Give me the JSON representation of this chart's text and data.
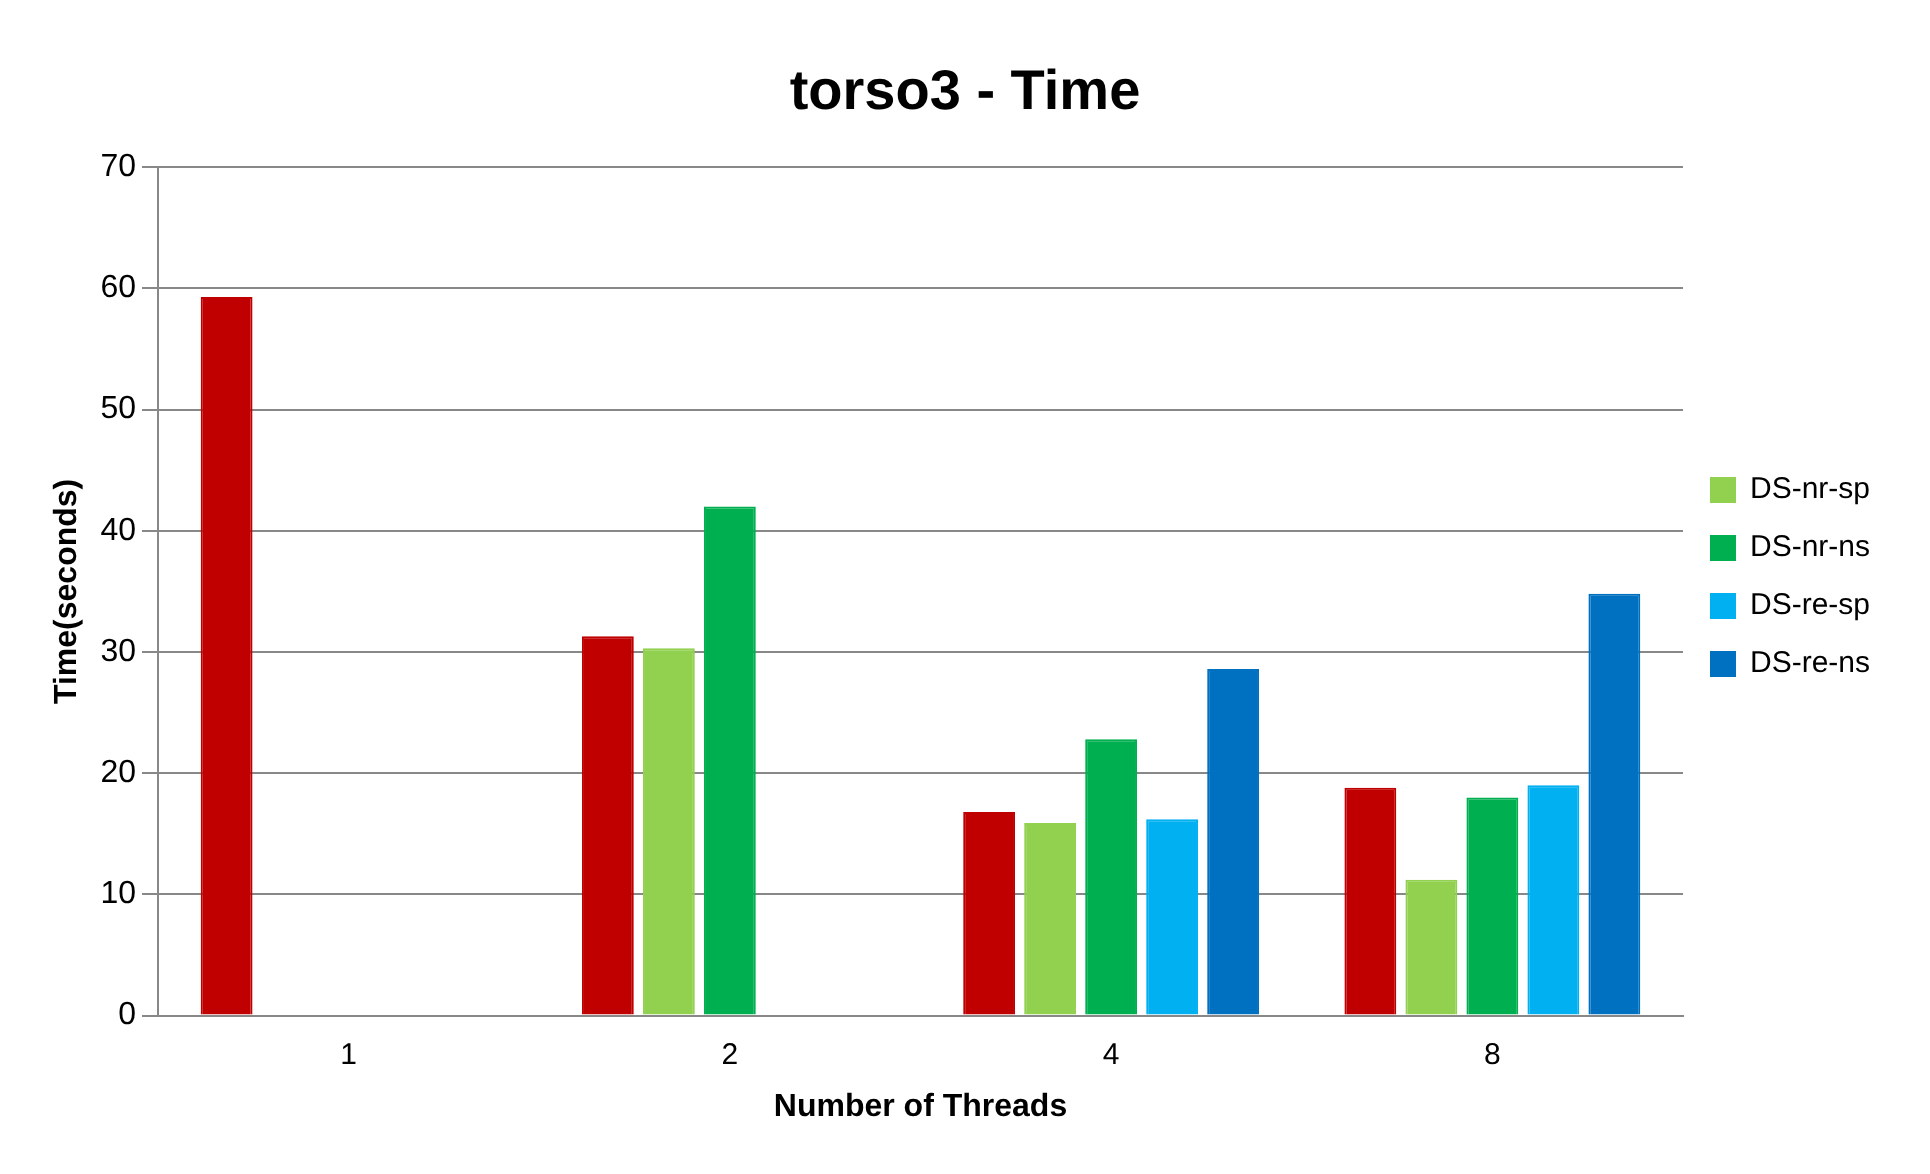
{
  "chart_data": {
    "type": "bar",
    "title": "torso3 - Time",
    "xlabel": "Number of Threads",
    "ylabel": "Time(seconds)",
    "categories": [
      "1",
      "2",
      "4",
      "8"
    ],
    "series": [
      {
        "color": "#c00000",
        "values": [
          59.3,
          31.3,
          16.8,
          18.8
        ]
      },
      {
        "name": "DS-nr-sp",
        "color": "#92d050",
        "values": [
          null,
          30.3,
          15.9,
          11.2
        ]
      },
      {
        "name": "DS-nr-ns",
        "color": "#00b050",
        "values": [
          null,
          42.0,
          22.8,
          18.0
        ]
      },
      {
        "name": "DS-re-sp",
        "color": "#00b0f0",
        "values": [
          null,
          null,
          16.2,
          19.0
        ]
      },
      {
        "name": "DS-re-ns",
        "color": "#0070c0",
        "values": [
          null,
          null,
          28.6,
          34.8
        ]
      }
    ],
    "ylim": [
      0,
      70
    ],
    "yticks": [
      0,
      10,
      20,
      30,
      40,
      50,
      60,
      70
    ],
    "grid": "y",
    "legend": "right"
  }
}
